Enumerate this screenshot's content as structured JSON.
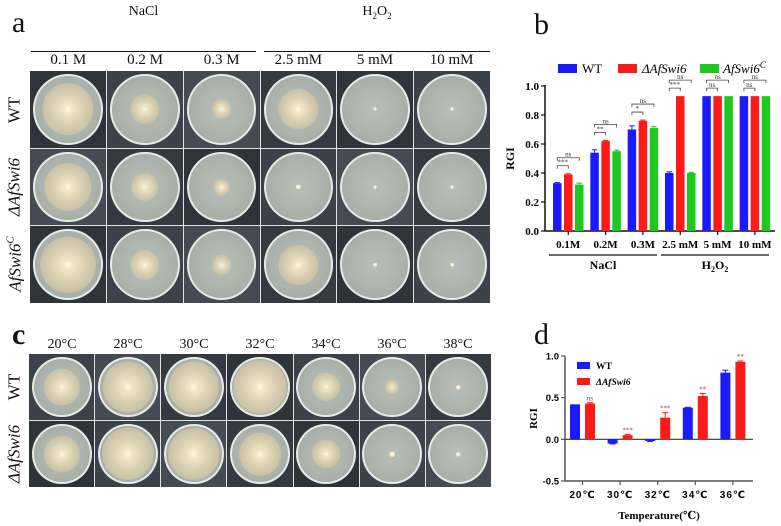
{
  "panel_a": {
    "letter": "a",
    "groups": [
      {
        "label": "NaCl",
        "columns": [
          "0.1 M",
          "0.2 M",
          "0.3 M"
        ]
      },
      {
        "label": "H2O2",
        "label_main": "H",
        "sub1": "2",
        "mid": "O",
        "sub2": "2",
        "columns": [
          "2.5 mM",
          "5 mM",
          "10 mM"
        ]
      }
    ],
    "rows": [
      {
        "label": "WT",
        "colony_diam": [
          0.78,
          0.45,
          0.3,
          0.6,
          0.06,
          0.06
        ]
      },
      {
        "label": "ΔAfSwi6",
        "colony_diam": [
          0.72,
          0.42,
          0.25,
          0.08,
          0.06,
          0.06
        ]
      },
      {
        "label": "AfSwi6",
        "sup": "C",
        "colony_diam": [
          0.85,
          0.45,
          0.3,
          0.6,
          0.07,
          0.07
        ]
      }
    ]
  },
  "panel_b": {
    "letter": "b"
  },
  "panel_c": {
    "letter": "c",
    "columns": [
      "20°C",
      "28°C",
      "30°C",
      "32°C",
      "34°C",
      "36°C",
      "38°C"
    ],
    "rows": [
      {
        "label": "WT",
        "colony_diam": [
          0.65,
          0.9,
          0.9,
          0.95,
          0.5,
          0.25,
          0.08
        ]
      },
      {
        "label": "ΔAfSwi6",
        "colony_diam": [
          0.65,
          0.92,
          0.92,
          0.75,
          0.5,
          0.1,
          0.08
        ]
      }
    ]
  },
  "panel_d": {
    "letter": "d"
  },
  "chart_data": [
    {
      "id": "b",
      "type": "bar",
      "title": "",
      "ylabel": "RGI",
      "xlabel": "",
      "ylim": [
        0,
        1.0
      ],
      "yticks": [
        "0.0",
        "0.2",
        "0.4",
        "0.6",
        "0.8",
        "1.0"
      ],
      "categories": [
        "0.1M",
        "0.2M",
        "0.3M",
        "2.5 mM",
        "5 mM",
        "10 mM"
      ],
      "group_labels": [
        {
          "label": "NaCl",
          "span": [
            0,
            2
          ]
        },
        {
          "label": "H2O2",
          "span": [
            3,
            5
          ]
        }
      ],
      "legend": {
        "position": "top",
        "entries": [
          "WT",
          "ΔAfSwi6",
          "AfSwi6C"
        ]
      },
      "series": [
        {
          "name": "WT",
          "color": "#1a1aff",
          "values": [
            0.33,
            0.54,
            0.7,
            0.4,
            0.93,
            0.93
          ],
          "errors": [
            0.005,
            0.02,
            0.025,
            0.008,
            0,
            0
          ]
        },
        {
          "name": "ΔAfSwi6",
          "color": "#ff1a1a",
          "values": [
            0.39,
            0.62,
            0.76,
            0.93,
            0.93,
            0.93
          ],
          "errors": [
            0.005,
            0.005,
            0.005,
            0,
            0,
            0
          ]
        },
        {
          "name": "AfSwi6C",
          "color": "#1ec81e",
          "values": [
            0.32,
            0.55,
            0.71,
            0.4,
            0.93,
            0.93
          ],
          "errors": [
            0.01,
            0.008,
            0.01,
            0.005,
            0,
            0
          ]
        }
      ],
      "annotations": [
        {
          "group": 0,
          "inner": "***",
          "outer": "ns"
        },
        {
          "group": 1,
          "inner": "**",
          "outer": "ns"
        },
        {
          "group": 2,
          "inner": "*",
          "outer": "ns"
        },
        {
          "group": 3,
          "inner": "***",
          "outer": "ns"
        },
        {
          "group": 4,
          "inner": "ns",
          "outer": "ns"
        },
        {
          "group": 5,
          "inner": "ns",
          "outer": "ns"
        }
      ]
    },
    {
      "id": "d",
      "type": "bar",
      "title": "",
      "ylabel": "RGI",
      "xlabel": "Temperature(℃)",
      "ylim": [
        -0.5,
        1.0
      ],
      "yticks": [
        "-0.5",
        "0.0",
        "0.5",
        "1.0"
      ],
      "categories": [
        "20℃",
        "30℃",
        "32℃",
        "34℃",
        "36℃"
      ],
      "legend": {
        "position": "top-left inside",
        "entries": [
          "WT",
          "ΔAfSwi6"
        ]
      },
      "series": [
        {
          "name": "WT",
          "color": "#1a1aff",
          "values": [
            0.42,
            -0.05,
            -0.02,
            0.38,
            0.8
          ],
          "errors": [
            0,
            0.005,
            0.005,
            0.005,
            0.03
          ]
        },
        {
          "name": "ΔAfSwi6",
          "color": "#ff1a1a",
          "values": [
            0.43,
            0.05,
            0.26,
            0.52,
            0.93
          ],
          "errors": [
            0.01,
            0.01,
            0.06,
            0.03,
            0.01
          ]
        }
      ],
      "annotations": [
        "ns",
        "***",
        "***",
        "**",
        "**"
      ]
    }
  ]
}
